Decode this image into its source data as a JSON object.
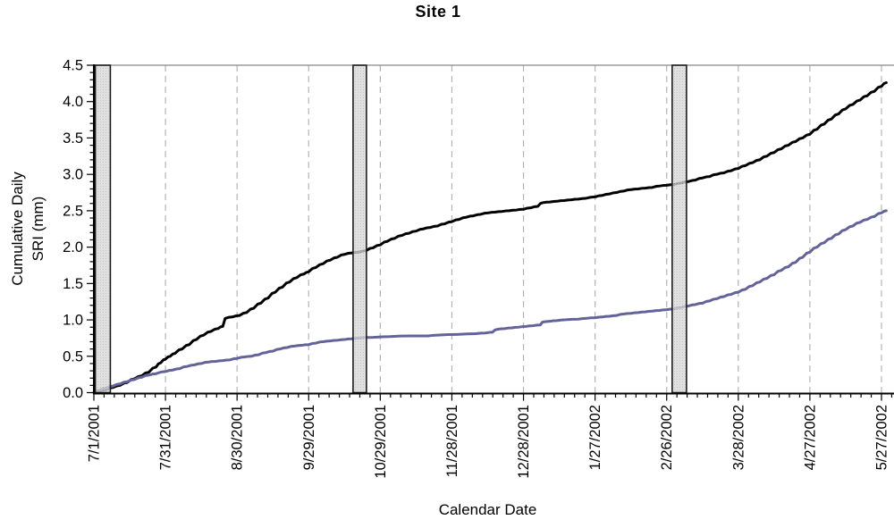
{
  "title": "Site 1",
  "axes": {
    "x_title": "Calendar Date",
    "y_title_line1": "Cumulative Daily",
    "y_title_line2": "SRI (mm)"
  },
  "chart_data": {
    "type": "line",
    "title": "Site 1",
    "xlabel": "Calendar Date",
    "ylabel": "Cumulative Daily SRI (mm)",
    "ylim": [
      0,
      4.5
    ],
    "y_major_step": 0.5,
    "y_minor_step": 0.1,
    "y_tick_labels": [
      "0.0",
      "0.5",
      "1.0",
      "1.5",
      "2.0",
      "2.5",
      "3.0",
      "3.5",
      "4.0",
      "4.5"
    ],
    "x_tick_labels": [
      "7/1/2001",
      "7/31/2001",
      "8/30/2001",
      "9/29/2001",
      "10/29/2001",
      "11/28/2001",
      "12/28/2001",
      "1/27/2002",
      "2/26/2002",
      "3/28/2002",
      "4/27/2002",
      "5/27/2002"
    ],
    "x_days_per_major": 30,
    "x_minor_per_major": 7,
    "x_day_range": [
      0,
      330
    ],
    "grid": {
      "vertical_dashed": true,
      "horizontal": false,
      "gridline_color": "#b4b4b4",
      "top_border_color": "#888888"
    },
    "legend": "none",
    "shaded_bars": {
      "fill": "#d7d7d7",
      "dot": "#b5b5b5",
      "border": "#1c1c1c",
      "intervals_days": [
        [
          0.6,
          6.9
        ],
        [
          108.6,
          114.2
        ],
        [
          242.3,
          248.3
        ]
      ]
    },
    "series": [
      {
        "name": "cumulative-sri-black",
        "color": "#000000",
        "points": [
          [
            0,
            0.0
          ],
          [
            2,
            0.02
          ],
          [
            5,
            0.04
          ],
          [
            8,
            0.07
          ],
          [
            11,
            0.1
          ],
          [
            14,
            0.14
          ],
          [
            17,
            0.19
          ],
          [
            20,
            0.23
          ],
          [
            23,
            0.28
          ],
          [
            26,
            0.35
          ],
          [
            28,
            0.41
          ],
          [
            30,
            0.46
          ],
          [
            32,
            0.5
          ],
          [
            34,
            0.54
          ],
          [
            37,
            0.6
          ],
          [
            40,
            0.66
          ],
          [
            43,
            0.73
          ],
          [
            46,
            0.79
          ],
          [
            49,
            0.84
          ],
          [
            52,
            0.88
          ],
          [
            54,
            0.91
          ],
          [
            55,
            1.02
          ],
          [
            58,
            1.04
          ],
          [
            61,
            1.06
          ],
          [
            64,
            1.1
          ],
          [
            67,
            1.16
          ],
          [
            70,
            1.23
          ],
          [
            73,
            1.3
          ],
          [
            76,
            1.38
          ],
          [
            79,
            1.45
          ],
          [
            82,
            1.52
          ],
          [
            85,
            1.58
          ],
          [
            88,
            1.63
          ],
          [
            90,
            1.66
          ],
          [
            93,
            1.72
          ],
          [
            96,
            1.77
          ],
          [
            99,
            1.82
          ],
          [
            102,
            1.86
          ],
          [
            105,
            1.9
          ],
          [
            108,
            1.92
          ],
          [
            111,
            1.93
          ],
          [
            114,
            1.95
          ],
          [
            117,
            1.99
          ],
          [
            120,
            2.03
          ],
          [
            123,
            2.08
          ],
          [
            126,
            2.12
          ],
          [
            129,
            2.16
          ],
          [
            132,
            2.19
          ],
          [
            135,
            2.22
          ],
          [
            138,
            2.25
          ],
          [
            141,
            2.27
          ],
          [
            144,
            2.29
          ],
          [
            147,
            2.32
          ],
          [
            150,
            2.35
          ],
          [
            153,
            2.38
          ],
          [
            156,
            2.41
          ],
          [
            159,
            2.43
          ],
          [
            162,
            2.45
          ],
          [
            165,
            2.47
          ],
          [
            168,
            2.48
          ],
          [
            171,
            2.49
          ],
          [
            174,
            2.5
          ],
          [
            177,
            2.51
          ],
          [
            180,
            2.52
          ],
          [
            183,
            2.54
          ],
          [
            186,
            2.56
          ],
          [
            188,
            2.61
          ],
          [
            191,
            2.62
          ],
          [
            194,
            2.63
          ],
          [
            197,
            2.64
          ],
          [
            200,
            2.65
          ],
          [
            203,
            2.66
          ],
          [
            206,
            2.67
          ],
          [
            210,
            2.69
          ],
          [
            213,
            2.71
          ],
          [
            216,
            2.73
          ],
          [
            219,
            2.75
          ],
          [
            222,
            2.77
          ],
          [
            225,
            2.79
          ],
          [
            228,
            2.8
          ],
          [
            231,
            2.81
          ],
          [
            234,
            2.82
          ],
          [
            237,
            2.84
          ],
          [
            240,
            2.85
          ],
          [
            243,
            2.86
          ],
          [
            246,
            2.88
          ],
          [
            249,
            2.9
          ],
          [
            252,
            2.92
          ],
          [
            255,
            2.95
          ],
          [
            258,
            2.97
          ],
          [
            261,
            3.0
          ],
          [
            264,
            3.02
          ],
          [
            267,
            3.05
          ],
          [
            270,
            3.08
          ],
          [
            273,
            3.12
          ],
          [
            276,
            3.16
          ],
          [
            279,
            3.2
          ],
          [
            282,
            3.25
          ],
          [
            285,
            3.3
          ],
          [
            288,
            3.35
          ],
          [
            291,
            3.4
          ],
          [
            294,
            3.45
          ],
          [
            297,
            3.5
          ],
          [
            300,
            3.55
          ],
          [
            303,
            3.62
          ],
          [
            306,
            3.69
          ],
          [
            309,
            3.76
          ],
          [
            312,
            3.83
          ],
          [
            315,
            3.9
          ],
          [
            318,
            3.96
          ],
          [
            321,
            4.02
          ],
          [
            324,
            4.08
          ],
          [
            327,
            4.14
          ],
          [
            330,
            4.21
          ],
          [
            332,
            4.26
          ]
        ]
      },
      {
        "name": "cumulative-sri-blue",
        "color": "#63639a",
        "points": [
          [
            0,
            0.0
          ],
          [
            2,
            0.03
          ],
          [
            5,
            0.06
          ],
          [
            8,
            0.09
          ],
          [
            11,
            0.12
          ],
          [
            14,
            0.15
          ],
          [
            17,
            0.18
          ],
          [
            20,
            0.21
          ],
          [
            23,
            0.24
          ],
          [
            26,
            0.26
          ],
          [
            30,
            0.29
          ],
          [
            33,
            0.31
          ],
          [
            36,
            0.33
          ],
          [
            39,
            0.36
          ],
          [
            42,
            0.38
          ],
          [
            45,
            0.4
          ],
          [
            48,
            0.42
          ],
          [
            51,
            0.43
          ],
          [
            54,
            0.44
          ],
          [
            57,
            0.45
          ],
          [
            60,
            0.47
          ],
          [
            63,
            0.49
          ],
          [
            66,
            0.5
          ],
          [
            69,
            0.52
          ],
          [
            72,
            0.55
          ],
          [
            75,
            0.57
          ],
          [
            78,
            0.6
          ],
          [
            81,
            0.62
          ],
          [
            84,
            0.64
          ],
          [
            87,
            0.65
          ],
          [
            90,
            0.66
          ],
          [
            93,
            0.68
          ],
          [
            96,
            0.7
          ],
          [
            99,
            0.71
          ],
          [
            102,
            0.72
          ],
          [
            105,
            0.73
          ],
          [
            108,
            0.74
          ],
          [
            111,
            0.75
          ],
          [
            117,
            0.76
          ],
          [
            124,
            0.77
          ],
          [
            132,
            0.78
          ],
          [
            140,
            0.78
          ],
          [
            144,
            0.79
          ],
          [
            152,
            0.8
          ],
          [
            160,
            0.81
          ],
          [
            164,
            0.82
          ],
          [
            167,
            0.83
          ],
          [
            169,
            0.87
          ],
          [
            172,
            0.88
          ],
          [
            175,
            0.89
          ],
          [
            178,
            0.9
          ],
          [
            181,
            0.91
          ],
          [
            184,
            0.92
          ],
          [
            187,
            0.93
          ],
          [
            188,
            0.97
          ],
          [
            191,
            0.98
          ],
          [
            194,
            0.99
          ],
          [
            197,
            1.0
          ],
          [
            203,
            1.01
          ],
          [
            206,
            1.02
          ],
          [
            210,
            1.03
          ],
          [
            213,
            1.04
          ],
          [
            216,
            1.05
          ],
          [
            219,
            1.06
          ],
          [
            222,
            1.08
          ],
          [
            225,
            1.09
          ],
          [
            228,
            1.1
          ],
          [
            231,
            1.11
          ],
          [
            234,
            1.12
          ],
          [
            237,
            1.13
          ],
          [
            240,
            1.14
          ],
          [
            243,
            1.15
          ],
          [
            246,
            1.17
          ],
          [
            249,
            1.19
          ],
          [
            252,
            1.21
          ],
          [
            255,
            1.23
          ],
          [
            258,
            1.26
          ],
          [
            261,
            1.29
          ],
          [
            264,
            1.32
          ],
          [
            267,
            1.35
          ],
          [
            270,
            1.38
          ],
          [
            273,
            1.42
          ],
          [
            276,
            1.47
          ],
          [
            279,
            1.52
          ],
          [
            282,
            1.57
          ],
          [
            285,
            1.62
          ],
          [
            288,
            1.68
          ],
          [
            291,
            1.73
          ],
          [
            294,
            1.79
          ],
          [
            297,
            1.86
          ],
          [
            300,
            1.93
          ],
          [
            303,
            2.0
          ],
          [
            306,
            2.06
          ],
          [
            309,
            2.12
          ],
          [
            312,
            2.18
          ],
          [
            315,
            2.24
          ],
          [
            318,
            2.29
          ],
          [
            321,
            2.34
          ],
          [
            324,
            2.38
          ],
          [
            327,
            2.42
          ],
          [
            330,
            2.47
          ],
          [
            332,
            2.5
          ]
        ]
      }
    ]
  }
}
